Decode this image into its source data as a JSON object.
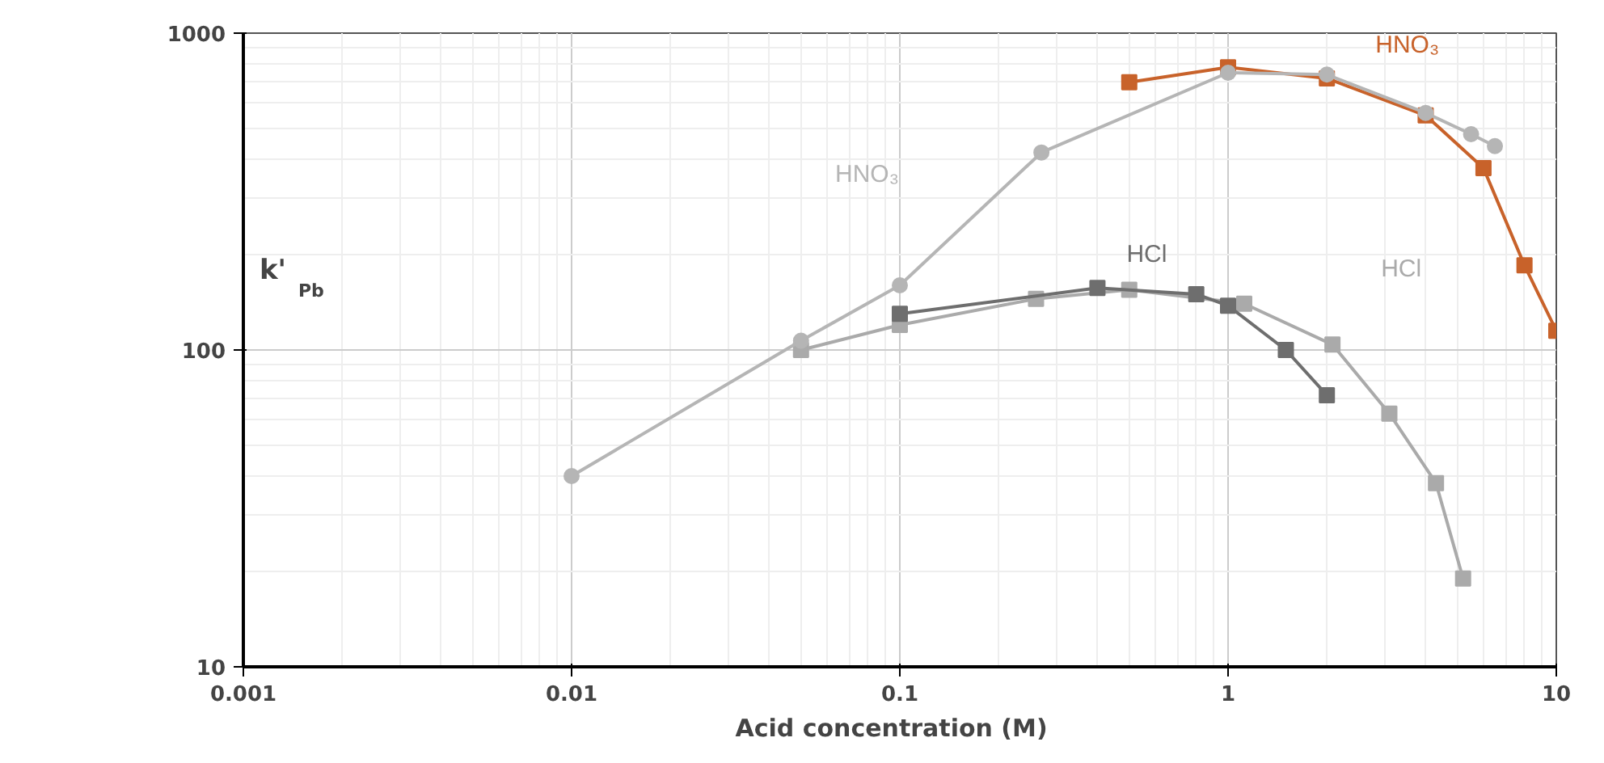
{
  "chart_data": {
    "type": "line",
    "xlabel": "Acid  concentration  (M)",
    "ylabel": "k'$_{Pb}$",
    "log": "xy",
    "grid": true,
    "xlim": [
      0.001,
      10
    ],
    "ylim": [
      10,
      1000
    ],
    "xticks": [
      0.001,
      0.01,
      0.1,
      1,
      10
    ],
    "yticks": [
      10,
      100,
      1000
    ],
    "series": [
      {
        "name": "HNO₃",
        "color": "#b5b5b5",
        "marker": "circle",
        "x": [
          0.01,
          0.05,
          0.1,
          0.27,
          1,
          2,
          4,
          5.5,
          6.5
        ],
        "values": [
          40,
          107,
          160,
          420,
          750,
          740,
          560,
          480,
          440
        ]
      },
      {
        "name": "HNO₃",
        "color": "#c8622a",
        "marker": "square",
        "x": [
          0.5,
          1,
          2,
          4,
          6,
          8,
          10
        ],
        "values": [
          700,
          780,
          720,
          550,
          375,
          185,
          115
        ]
      },
      {
        "name": "HCl",
        "color": "#6e6e6e",
        "marker": "square",
        "x": [
          0.1,
          0.4,
          0.8,
          1,
          1.5,
          2
        ],
        "values": [
          130,
          157,
          150,
          138,
          100,
          72
        ]
      },
      {
        "name": "HCl",
        "color": "#aaaaaa",
        "marker": "square",
        "x": [
          0.05,
          0.1,
          0.26,
          0.5,
          1.12,
          2.08,
          3.1,
          4.3,
          5.2
        ],
        "values": [
          100,
          120,
          145,
          155,
          140,
          104,
          63,
          38,
          19
        ]
      }
    ]
  }
}
